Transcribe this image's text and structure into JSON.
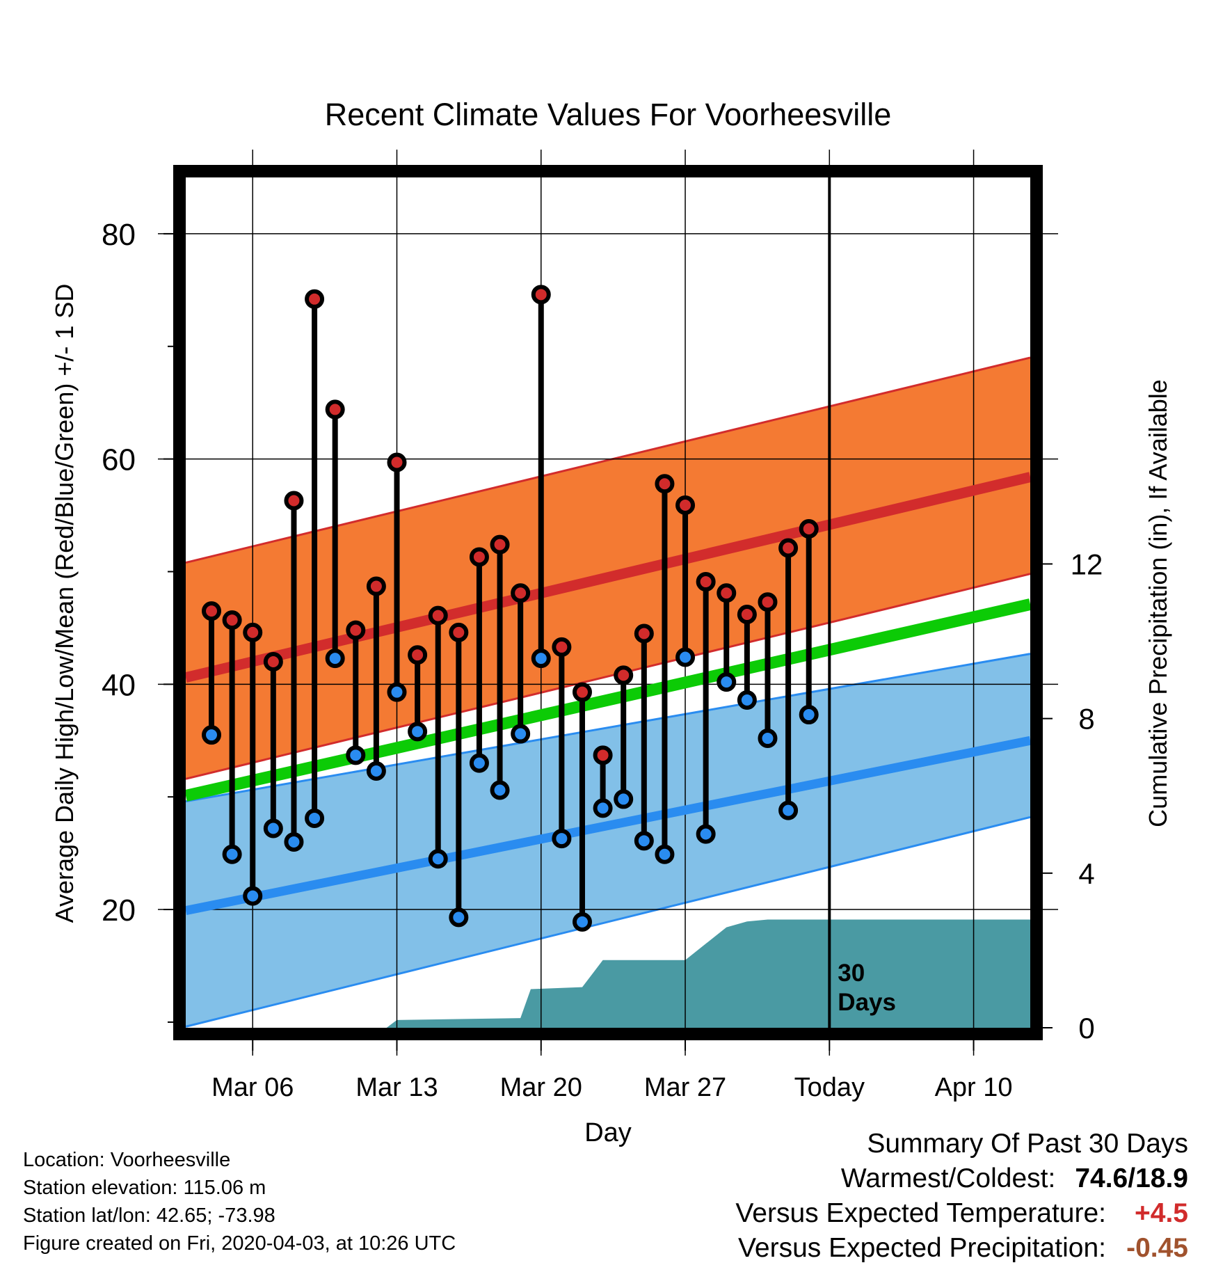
{
  "chart_data": {
    "type": "line",
    "title": "Recent Climate Values For Voorheesville",
    "xlabel": "Day",
    "ylabel": "Average Daily High/Low/Mean (Red/Blue/Green) +/- 1 SD",
    "y2label": "Cumulative Precipitation (in), If Available",
    "x_tick_labels": [
      "Mar 06",
      "Mar 13",
      "Mar 20",
      "Mar 27",
      "Today",
      "Apr 10"
    ],
    "x_tick_days": [
      6,
      13,
      20,
      27,
      34,
      41
    ],
    "xlim_days": [
      2.75,
      43.75
    ],
    "ylim": [
      9.5,
      85
    ],
    "y_ticks": [
      20,
      40,
      60,
      80
    ],
    "y2lim": [
      0,
      22
    ],
    "y2_ticks": [
      0,
      4,
      8,
      12
    ],
    "today_day": 34,
    "today_annotation": [
      "30",
      "Days"
    ],
    "observed": {
      "days": [
        4,
        5,
        6,
        7,
        8,
        9,
        10,
        11,
        12,
        13,
        14,
        15,
        16,
        17,
        18,
        19,
        20,
        21,
        22,
        23,
        24,
        25,
        26,
        27,
        28,
        29,
        30,
        31,
        32,
        33
      ],
      "highs": [
        46.5,
        45.7,
        44.6,
        42.0,
        56.3,
        74.2,
        64.4,
        44.8,
        48.7,
        59.7,
        42.6,
        46.1,
        44.6,
        51.3,
        52.4,
        48.1,
        74.6,
        43.3,
        39.3,
        33.7,
        40.8,
        44.5,
        57.8,
        55.9,
        49.1,
        48.1,
        46.2,
        47.3,
        52.1,
        53.8
      ],
      "lows": [
        35.5,
        24.9,
        21.2,
        27.2,
        26.0,
        28.1,
        42.3,
        33.7,
        32.3,
        39.3,
        35.8,
        24.5,
        19.3,
        33.0,
        30.6,
        35.6,
        42.3,
        26.3,
        18.9,
        29.0,
        29.8,
        26.1,
        24.9,
        42.4,
        26.7,
        40.2,
        38.6,
        35.2,
        28.8,
        37.3
      ],
      "high_color": "#d12b2b",
      "low_color": "#2a8cf0"
    },
    "normals": {
      "days": [
        2.75,
        43.75
      ],
      "mean_high": [
        40.6,
        58.4
      ],
      "mean_high_plus_sd": [
        50.8,
        69.0
      ],
      "mean_high_minus_sd": [
        31.6,
        49.8
      ],
      "mean": [
        30.1,
        47.1
      ],
      "mean_low": [
        19.9,
        35.0
      ],
      "mean_low_plus_sd": [
        29.6,
        42.7
      ],
      "mean_low_minus_sd": [
        9.6,
        28.2
      ],
      "high_band_color": "#f47a33",
      "high_line_color": "#d22c2c",
      "mean_line_color": "#0ccb06",
      "low_band_color": "#82c0e8",
      "low_line_color": "#2a8cf0"
    },
    "precipitation": {
      "days": [
        2.75,
        12.5,
        13,
        19,
        19.5,
        22,
        23,
        27,
        29,
        30,
        31,
        43.75
      ],
      "values": [
        0,
        0,
        0.2,
        0.25,
        1.0,
        1.05,
        1.75,
        1.75,
        2.6,
        2.75,
        2.8,
        2.8
      ],
      "color": "#4a9aa3"
    }
  },
  "info": {
    "location": "Location: Voorheesville",
    "elevation": "Station elevation: 115.06 m",
    "latlon": "Station lat/lon: 42.65; -73.98",
    "created": "Figure created on Fri, 2020-04-03, at 10:26 UTC"
  },
  "summary": {
    "heading": "Summary Of Past 30 Days",
    "warmest_label": "Warmest/Coldest:",
    "warmest_value": "74.6/18.9",
    "temp_label": "Versus Expected Temperature:",
    "temp_value": "+4.5",
    "temp_color": "#d12b2b",
    "precip_label": "Versus Expected Precipitation:",
    "precip_value": "-0.45",
    "precip_color": "#a0522d"
  }
}
